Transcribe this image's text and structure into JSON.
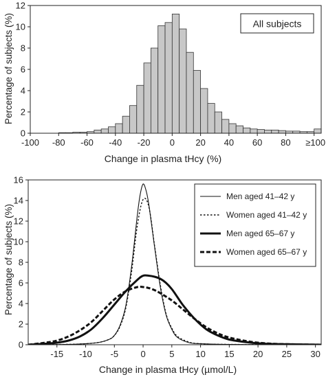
{
  "chart_data": [
    {
      "type": "bar",
      "title": "",
      "xlabel": "Change in plasma tHcy (%)",
      "ylabel": "Percentage of subjects (%)",
      "annotation": "All subjects",
      "xlim": [
        -100,
        105
      ],
      "ylim": [
        0,
        12
      ],
      "bin_width": 5,
      "xticks": [
        -100,
        -80,
        -60,
        -40,
        -20,
        0,
        20,
        40,
        60,
        80
      ],
      "xtick_last_label": "≥100",
      "xtick_last_value": 100,
      "yticks": [
        0,
        2,
        4,
        6,
        8,
        10,
        12
      ],
      "bins": [
        {
          "start": -80,
          "value": 0.05
        },
        {
          "start": -75,
          "value": 0.05
        },
        {
          "start": -70,
          "value": 0.1
        },
        {
          "start": -65,
          "value": 0.1
        },
        {
          "start": -60,
          "value": 0.15
        },
        {
          "start": -55,
          "value": 0.3
        },
        {
          "start": -50,
          "value": 0.4
        },
        {
          "start": -45,
          "value": 0.6
        },
        {
          "start": -40,
          "value": 0.9
        },
        {
          "start": -35,
          "value": 1.6
        },
        {
          "start": -30,
          "value": 2.6
        },
        {
          "start": -25,
          "value": 4.5
        },
        {
          "start": -20,
          "value": 6.6
        },
        {
          "start": -15,
          "value": 8.0
        },
        {
          "start": -10,
          "value": 10.1
        },
        {
          "start": -5,
          "value": 10.4
        },
        {
          "start": 0,
          "value": 11.2
        },
        {
          "start": 5,
          "value": 9.8
        },
        {
          "start": 10,
          "value": 7.6
        },
        {
          "start": 15,
          "value": 5.9
        },
        {
          "start": 20,
          "value": 4.2
        },
        {
          "start": 25,
          "value": 2.8
        },
        {
          "start": 30,
          "value": 2.0
        },
        {
          "start": 35,
          "value": 1.3
        },
        {
          "start": 40,
          "value": 0.9
        },
        {
          "start": 45,
          "value": 0.7
        },
        {
          "start": 50,
          "value": 0.5
        },
        {
          "start": 55,
          "value": 0.4
        },
        {
          "start": 60,
          "value": 0.35
        },
        {
          "start": 65,
          "value": 0.3
        },
        {
          "start": 70,
          "value": 0.3
        },
        {
          "start": 75,
          "value": 0.25
        },
        {
          "start": 80,
          "value": 0.2
        },
        {
          "start": 85,
          "value": 0.2
        },
        {
          "start": 90,
          "value": 0.15
        },
        {
          "start": 95,
          "value": 0.15
        },
        {
          "start": 100,
          "value": 0.4
        }
      ],
      "bar_color": "#c8c8c8"
    },
    {
      "type": "line",
      "title": "",
      "xlabel": "Change in plasma tHcy (µmol/L)",
      "ylabel": "Percentage of subjects (%)",
      "xlim": [
        -20,
        31
      ],
      "ylim": [
        0,
        16
      ],
      "xticks": [
        -15,
        -10,
        -5,
        0,
        5,
        10,
        15,
        20,
        25,
        30
      ],
      "yticks": [
        0,
        2,
        4,
        6,
        8,
        10,
        12,
        14,
        16
      ],
      "legend": "top-right",
      "series": [
        {
          "name": "Men aged 41–42 y",
          "style": "thin-solid",
          "x": [
            -20,
            -12,
            -8,
            -6,
            -5,
            -4,
            -3,
            -2,
            -1,
            -0.5,
            0,
            0.5,
            1,
            2,
            3,
            4,
            5,
            6,
            8,
            10,
            15,
            31
          ],
          "y": [
            0,
            0.05,
            0.2,
            0.5,
            0.9,
            1.9,
            3.8,
            7.6,
            12.6,
            14.6,
            15.6,
            15.0,
            13.6,
            9.5,
            5.6,
            2.9,
            1.5,
            0.7,
            0.2,
            0.1,
            0.03,
            0
          ]
        },
        {
          "name": "Women aged 41–42 y",
          "style": "thin-dotted",
          "x": [
            -20,
            -12,
            -8,
            -6,
            -5,
            -4,
            -3,
            -2,
            -1,
            0,
            1,
            2,
            3,
            4,
            5,
            6,
            8,
            10,
            15,
            31
          ],
          "y": [
            0,
            0.05,
            0.2,
            0.5,
            0.9,
            1.8,
            3.6,
            7.1,
            11.6,
            14.1,
            13.4,
            9.6,
            5.8,
            3.0,
            1.6,
            0.8,
            0.25,
            0.1,
            0.03,
            0
          ]
        },
        {
          "name": "Men aged 65–67 y",
          "style": "thick-solid",
          "x": [
            -20,
            -17,
            -15,
            -13,
            -11,
            -9,
            -7,
            -5,
            -3,
            -1,
            0,
            1,
            2,
            3,
            4,
            5,
            6,
            7,
            9,
            11,
            13,
            15,
            18,
            21,
            25,
            31
          ],
          "y": [
            0,
            0.1,
            0.2,
            0.4,
            0.8,
            1.5,
            2.6,
            3.9,
            5.2,
            6.3,
            6.7,
            6.7,
            6.6,
            6.4,
            6.0,
            5.4,
            4.6,
            3.8,
            2.5,
            1.5,
            0.9,
            0.5,
            0.25,
            0.1,
            0.05,
            0
          ]
        },
        {
          "name": "Women aged 65–67 y",
          "style": "thick-dashed",
          "x": [
            -20,
            -17,
            -15,
            -13,
            -11,
            -9,
            -7,
            -5,
            -3,
            -1,
            0,
            1,
            2,
            3,
            5,
            7,
            9,
            11,
            13,
            15,
            18,
            21,
            25,
            31
          ],
          "y": [
            0,
            0.2,
            0.4,
            0.8,
            1.4,
            2.2,
            3.3,
            4.4,
            5.2,
            5.6,
            5.6,
            5.5,
            5.3,
            5.0,
            4.3,
            3.4,
            2.5,
            1.7,
            1.1,
            0.7,
            0.35,
            0.15,
            0.05,
            0
          ]
        }
      ]
    }
  ]
}
